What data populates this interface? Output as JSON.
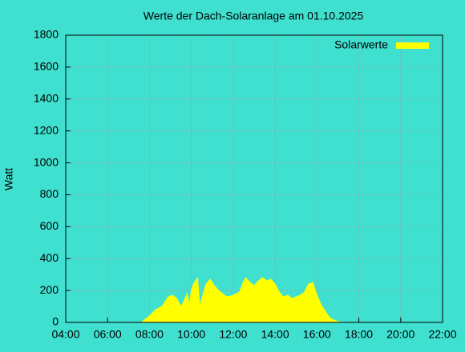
{
  "chart_data": {
    "type": "area",
    "title": "Werte der Dach-Solaranlage am 01.10.2025",
    "y_label": "Watt",
    "legend": "top right",
    "grid": true,
    "xlim": [
      4,
      22
    ],
    "ylim": [
      0,
      1800
    ],
    "xticks": [
      {
        "value": 4,
        "label": "04:00"
      },
      {
        "value": 6,
        "label": "06:00"
      },
      {
        "value": 8,
        "label": "08:00"
      },
      {
        "value": 10,
        "label": "10:00"
      },
      {
        "value": 12,
        "label": "12:00"
      },
      {
        "value": 14,
        "label": "14:00"
      },
      {
        "value": 16,
        "label": "16:00"
      },
      {
        "value": 18,
        "label": "18:00"
      },
      {
        "value": 20,
        "label": "20:00"
      },
      {
        "value": 22,
        "label": "22:00"
      }
    ],
    "yticks": [
      0,
      200,
      400,
      600,
      800,
      1000,
      1200,
      1400,
      1600,
      1800
    ],
    "series": [
      {
        "name": "Solarwerte",
        "color": "#ffff00",
        "x": [
          7.6,
          7.8,
          8.0,
          8.3,
          8.6,
          8.9,
          9.1,
          9.3,
          9.5,
          9.6,
          9.8,
          9.9,
          10.0,
          10.1,
          10.3,
          10.4,
          10.5,
          10.7,
          10.9,
          11.1,
          11.3,
          11.5,
          11.7,
          12.0,
          12.3,
          12.5,
          12.6,
          12.8,
          13.0,
          13.2,
          13.4,
          13.6,
          13.8,
          14.0,
          14.2,
          14.4,
          14.6,
          14.8,
          15.0,
          15.2,
          15.4,
          15.6,
          15.8,
          16.0,
          16.2,
          16.4,
          16.6,
          16.8,
          17.0,
          17.2
        ],
        "values": [
          0,
          20,
          40,
          80,
          100,
          160,
          170,
          150,
          100,
          120,
          180,
          110,
          200,
          240,
          280,
          100,
          150,
          240,
          270,
          230,
          200,
          180,
          160,
          170,
          190,
          260,
          280,
          250,
          230,
          260,
          280,
          260,
          270,
          240,
          190,
          160,
          170,
          150,
          160,
          170,
          190,
          240,
          250,
          170,
          110,
          70,
          30,
          15,
          5,
          0
        ]
      }
    ]
  }
}
